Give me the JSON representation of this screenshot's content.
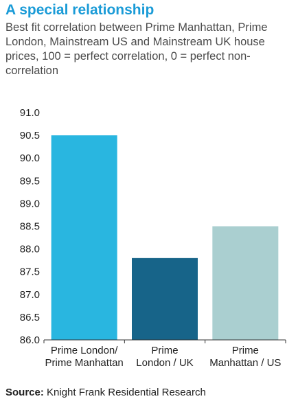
{
  "header": {
    "title": "A special relationship",
    "subtitle": "Best fit correlation between Prime Manhattan, Prime London, Mainstream US and Mainstream UK house prices, 100 = perfect correlation, 0 = perfect non-correlation"
  },
  "footer": {
    "source_label": "Source:",
    "source_text": " Knight Frank Residential Research"
  },
  "chart_data": {
    "type": "bar",
    "title": "A special relationship",
    "xlabel": "",
    "ylabel": "",
    "categories": [
      [
        "Prime London/",
        "Prime Manhattan"
      ],
      [
        "Prime",
        "London / UK"
      ],
      [
        "Prime",
        "Manhattan / US"
      ]
    ],
    "values": [
      90.5,
      87.8,
      88.5
    ],
    "colors": [
      "#29b6e0",
      "#176489",
      "#aacfd0"
    ],
    "ylim": [
      86.0,
      91.0
    ],
    "yticks": [
      "86.0",
      "86.5",
      "87.0",
      "87.5",
      "88.0",
      "88.5",
      "89.0",
      "89.5",
      "90.0",
      "90.5",
      "91.0"
    ],
    "grid": false,
    "legend": "none"
  }
}
